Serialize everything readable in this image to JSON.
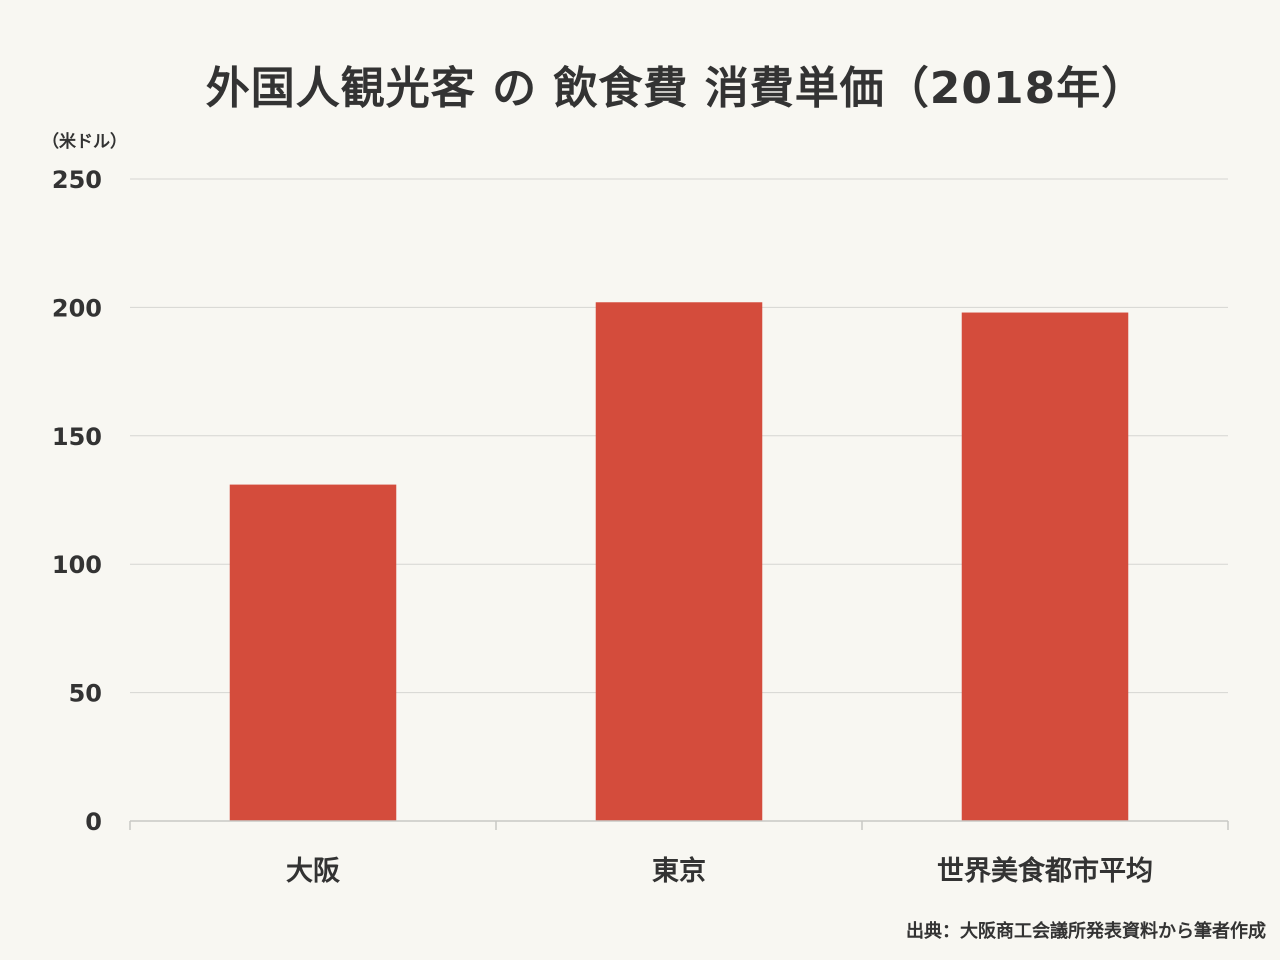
{
  "chart_data": {
    "type": "bar",
    "title": "外国人観光客 の 飲食費 消費単価（2018年）",
    "unit_label": "（米ドル）",
    "categories": [
      "大阪",
      "東京",
      "世界美食都市平均"
    ],
    "values": [
      131,
      202,
      198
    ],
    "ylim": [
      0,
      250
    ],
    "yticks": [
      0,
      50,
      100,
      150,
      200,
      250
    ],
    "grid": true,
    "bar_color": "#d44c3c",
    "source": "出典：大阪商工会議所発表資料から筆者作成"
  }
}
